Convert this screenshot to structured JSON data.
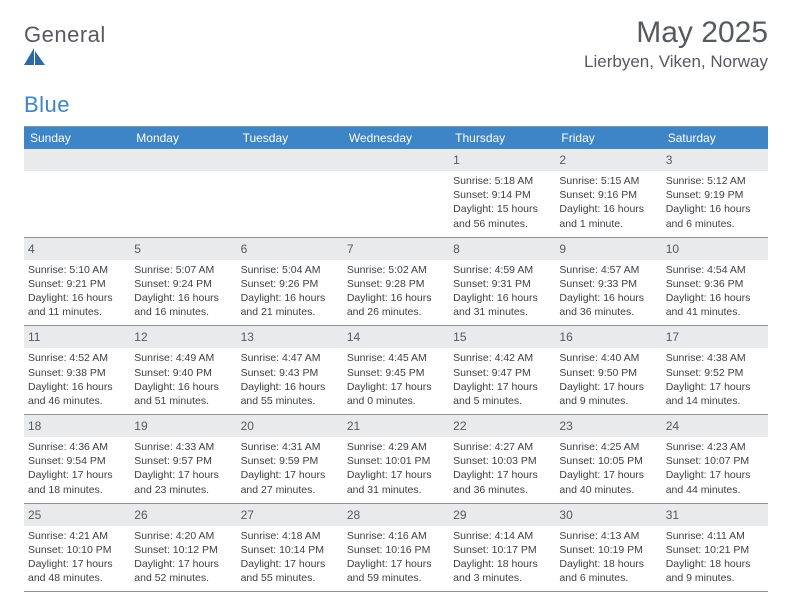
{
  "logo": {
    "text_a": "General",
    "text_b": "Blue"
  },
  "title": "May 2025",
  "location": "Lierbyen, Viken, Norway",
  "colors": {
    "header_bg": "#3d85c6",
    "header_text": "#ffffff",
    "band_bg": "#e9eaec",
    "rule": "#8f9399",
    "body_text": "#3c3f44",
    "muted_text": "#555a61",
    "page_bg": "#ffffff"
  },
  "dow": [
    "Sunday",
    "Monday",
    "Tuesday",
    "Wednesday",
    "Thursday",
    "Friday",
    "Saturday"
  ],
  "weeks": [
    [
      {
        "n": "",
        "sr": "",
        "ss": "",
        "d1": "",
        "d2": ""
      },
      {
        "n": "",
        "sr": "",
        "ss": "",
        "d1": "",
        "d2": ""
      },
      {
        "n": "",
        "sr": "",
        "ss": "",
        "d1": "",
        "d2": ""
      },
      {
        "n": "",
        "sr": "",
        "ss": "",
        "d1": "",
        "d2": ""
      },
      {
        "n": "1",
        "sr": "Sunrise: 5:18 AM",
        "ss": "Sunset: 9:14 PM",
        "d1": "Daylight: 15 hours",
        "d2": "and 56 minutes."
      },
      {
        "n": "2",
        "sr": "Sunrise: 5:15 AM",
        "ss": "Sunset: 9:16 PM",
        "d1": "Daylight: 16 hours",
        "d2": "and 1 minute."
      },
      {
        "n": "3",
        "sr": "Sunrise: 5:12 AM",
        "ss": "Sunset: 9:19 PM",
        "d1": "Daylight: 16 hours",
        "d2": "and 6 minutes."
      }
    ],
    [
      {
        "n": "4",
        "sr": "Sunrise: 5:10 AM",
        "ss": "Sunset: 9:21 PM",
        "d1": "Daylight: 16 hours",
        "d2": "and 11 minutes."
      },
      {
        "n": "5",
        "sr": "Sunrise: 5:07 AM",
        "ss": "Sunset: 9:24 PM",
        "d1": "Daylight: 16 hours",
        "d2": "and 16 minutes."
      },
      {
        "n": "6",
        "sr": "Sunrise: 5:04 AM",
        "ss": "Sunset: 9:26 PM",
        "d1": "Daylight: 16 hours",
        "d2": "and 21 minutes."
      },
      {
        "n": "7",
        "sr": "Sunrise: 5:02 AM",
        "ss": "Sunset: 9:28 PM",
        "d1": "Daylight: 16 hours",
        "d2": "and 26 minutes."
      },
      {
        "n": "8",
        "sr": "Sunrise: 4:59 AM",
        "ss": "Sunset: 9:31 PM",
        "d1": "Daylight: 16 hours",
        "d2": "and 31 minutes."
      },
      {
        "n": "9",
        "sr": "Sunrise: 4:57 AM",
        "ss": "Sunset: 9:33 PM",
        "d1": "Daylight: 16 hours",
        "d2": "and 36 minutes."
      },
      {
        "n": "10",
        "sr": "Sunrise: 4:54 AM",
        "ss": "Sunset: 9:36 PM",
        "d1": "Daylight: 16 hours",
        "d2": "and 41 minutes."
      }
    ],
    [
      {
        "n": "11",
        "sr": "Sunrise: 4:52 AM",
        "ss": "Sunset: 9:38 PM",
        "d1": "Daylight: 16 hours",
        "d2": "and 46 minutes."
      },
      {
        "n": "12",
        "sr": "Sunrise: 4:49 AM",
        "ss": "Sunset: 9:40 PM",
        "d1": "Daylight: 16 hours",
        "d2": "and 51 minutes."
      },
      {
        "n": "13",
        "sr": "Sunrise: 4:47 AM",
        "ss": "Sunset: 9:43 PM",
        "d1": "Daylight: 16 hours",
        "d2": "and 55 minutes."
      },
      {
        "n": "14",
        "sr": "Sunrise: 4:45 AM",
        "ss": "Sunset: 9:45 PM",
        "d1": "Daylight: 17 hours",
        "d2": "and 0 minutes."
      },
      {
        "n": "15",
        "sr": "Sunrise: 4:42 AM",
        "ss": "Sunset: 9:47 PM",
        "d1": "Daylight: 17 hours",
        "d2": "and 5 minutes."
      },
      {
        "n": "16",
        "sr": "Sunrise: 4:40 AM",
        "ss": "Sunset: 9:50 PM",
        "d1": "Daylight: 17 hours",
        "d2": "and 9 minutes."
      },
      {
        "n": "17",
        "sr": "Sunrise: 4:38 AM",
        "ss": "Sunset: 9:52 PM",
        "d1": "Daylight: 17 hours",
        "d2": "and 14 minutes."
      }
    ],
    [
      {
        "n": "18",
        "sr": "Sunrise: 4:36 AM",
        "ss": "Sunset: 9:54 PM",
        "d1": "Daylight: 17 hours",
        "d2": "and 18 minutes."
      },
      {
        "n": "19",
        "sr": "Sunrise: 4:33 AM",
        "ss": "Sunset: 9:57 PM",
        "d1": "Daylight: 17 hours",
        "d2": "and 23 minutes."
      },
      {
        "n": "20",
        "sr": "Sunrise: 4:31 AM",
        "ss": "Sunset: 9:59 PM",
        "d1": "Daylight: 17 hours",
        "d2": "and 27 minutes."
      },
      {
        "n": "21",
        "sr": "Sunrise: 4:29 AM",
        "ss": "Sunset: 10:01 PM",
        "d1": "Daylight: 17 hours",
        "d2": "and 31 minutes."
      },
      {
        "n": "22",
        "sr": "Sunrise: 4:27 AM",
        "ss": "Sunset: 10:03 PM",
        "d1": "Daylight: 17 hours",
        "d2": "and 36 minutes."
      },
      {
        "n": "23",
        "sr": "Sunrise: 4:25 AM",
        "ss": "Sunset: 10:05 PM",
        "d1": "Daylight: 17 hours",
        "d2": "and 40 minutes."
      },
      {
        "n": "24",
        "sr": "Sunrise: 4:23 AM",
        "ss": "Sunset: 10:07 PM",
        "d1": "Daylight: 17 hours",
        "d2": "and 44 minutes."
      }
    ],
    [
      {
        "n": "25",
        "sr": "Sunrise: 4:21 AM",
        "ss": "Sunset: 10:10 PM",
        "d1": "Daylight: 17 hours",
        "d2": "and 48 minutes."
      },
      {
        "n": "26",
        "sr": "Sunrise: 4:20 AM",
        "ss": "Sunset: 10:12 PM",
        "d1": "Daylight: 17 hours",
        "d2": "and 52 minutes."
      },
      {
        "n": "27",
        "sr": "Sunrise: 4:18 AM",
        "ss": "Sunset: 10:14 PM",
        "d1": "Daylight: 17 hours",
        "d2": "and 55 minutes."
      },
      {
        "n": "28",
        "sr": "Sunrise: 4:16 AM",
        "ss": "Sunset: 10:16 PM",
        "d1": "Daylight: 17 hours",
        "d2": "and 59 minutes."
      },
      {
        "n": "29",
        "sr": "Sunrise: 4:14 AM",
        "ss": "Sunset: 10:17 PM",
        "d1": "Daylight: 18 hours",
        "d2": "and 3 minutes."
      },
      {
        "n": "30",
        "sr": "Sunrise: 4:13 AM",
        "ss": "Sunset: 10:19 PM",
        "d1": "Daylight: 18 hours",
        "d2": "and 6 minutes."
      },
      {
        "n": "31",
        "sr": "Sunrise: 4:11 AM",
        "ss": "Sunset: 10:21 PM",
        "d1": "Daylight: 18 hours",
        "d2": "and 9 minutes."
      }
    ]
  ]
}
